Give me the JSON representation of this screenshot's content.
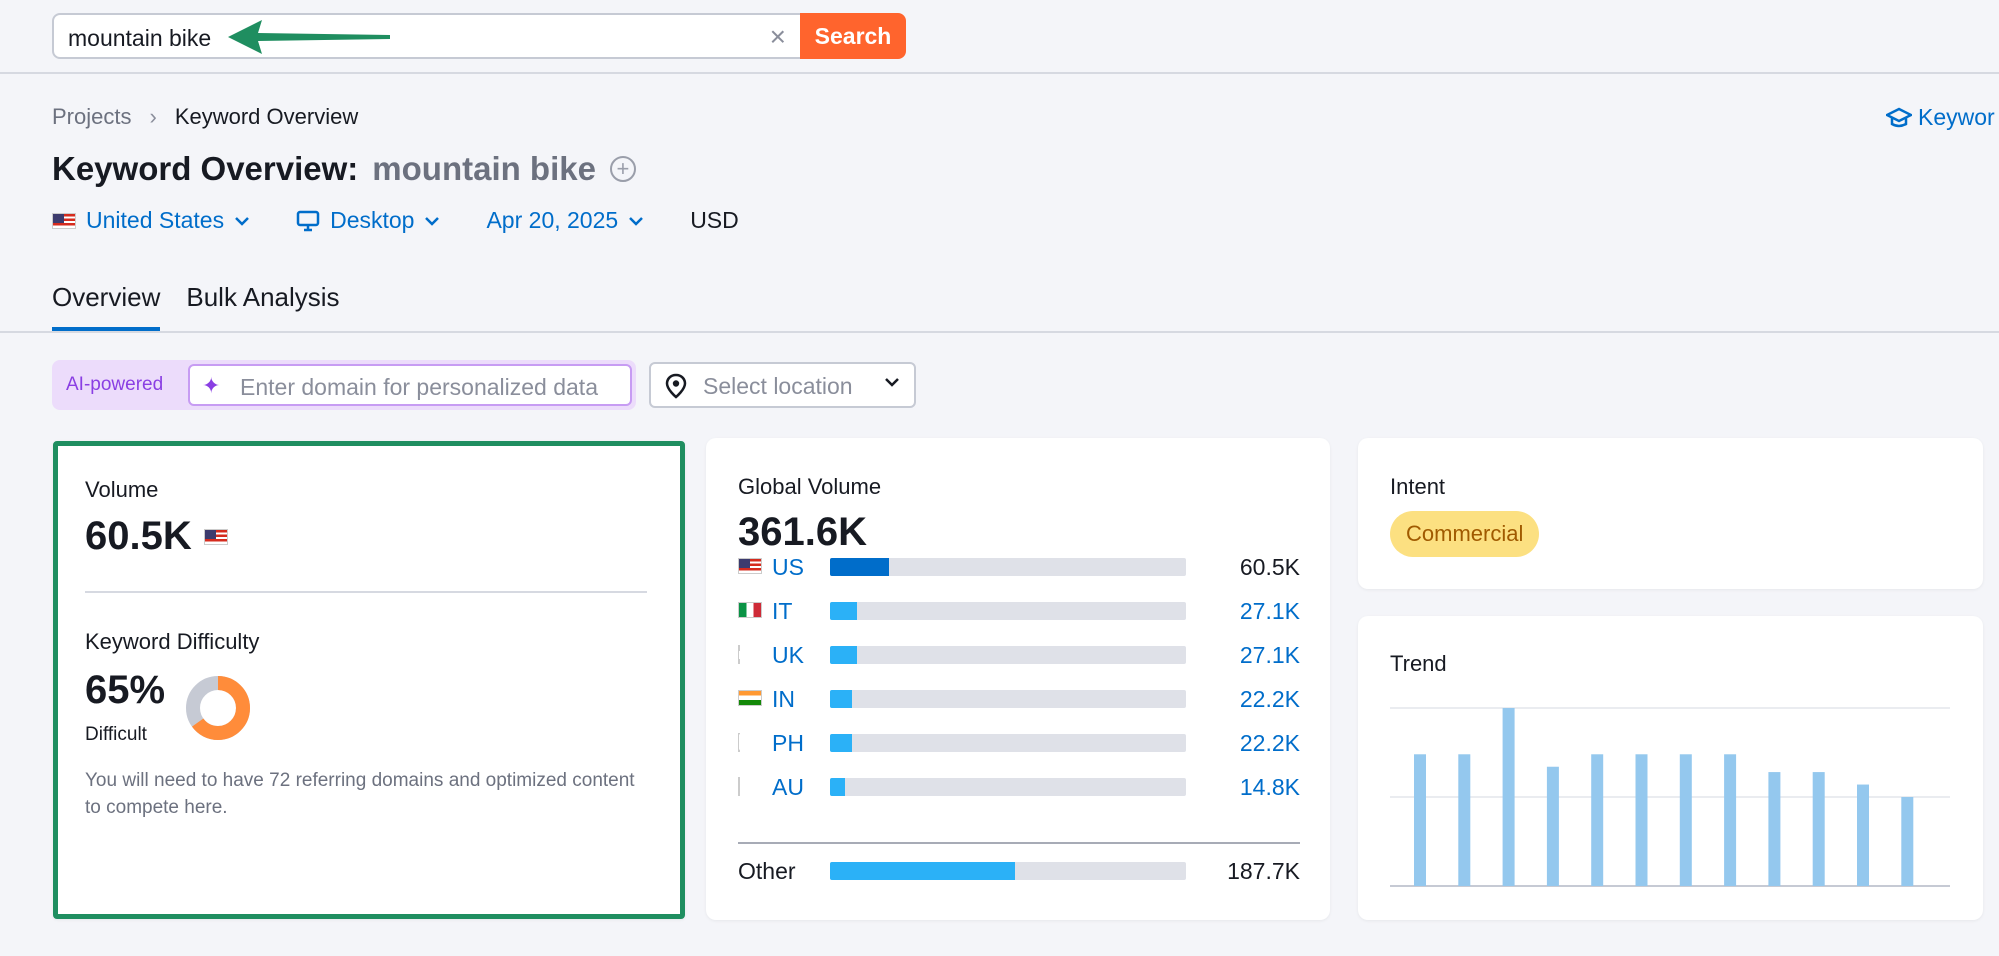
{
  "search": {
    "query": "mountain bike",
    "button_label": "Search"
  },
  "breadcrumb": {
    "root": "Projects",
    "current": "Keyword Overview"
  },
  "header_link": "Keywor",
  "title": {
    "prefix": "Keyword Overview:",
    "keyword": "mountain bike"
  },
  "filters": {
    "country": "United States",
    "device": "Desktop",
    "date": "Apr 20, 2025",
    "currency": "USD"
  },
  "tabs": [
    {
      "label": "Overview",
      "active": true
    },
    {
      "label": "Bulk Analysis",
      "active": false
    }
  ],
  "ai": {
    "badge": "AI-powered",
    "placeholder": "Enter domain for personalized data"
  },
  "location": {
    "placeholder": "Select location"
  },
  "volume": {
    "label": "Volume",
    "value": "60.5K",
    "kd_label": "Keyword Difficulty",
    "kd_value": "65%",
    "kd_percent": 65,
    "kd_level": "Difficult",
    "kd_description": "You will need to have 72 referring domains and optimized content to compete here.",
    "colors": {
      "border": "#1f8e60",
      "donut_fill": "#ff8c3a",
      "donut_track": "#c6cad4"
    }
  },
  "global_volume": {
    "label": "Global Volume",
    "value": "361.6K",
    "rows": [
      {
        "code": "US",
        "value": "60.5K",
        "share": 0.167,
        "flag": "flag-us"
      },
      {
        "code": "IT",
        "value": "27.1K",
        "share": 0.075,
        "flag": "flag-it"
      },
      {
        "code": "UK",
        "value": "27.1K",
        "share": 0.075,
        "flag": "flag-uk"
      },
      {
        "code": "IN",
        "value": "22.2K",
        "share": 0.061,
        "flag": "flag-in"
      },
      {
        "code": "PH",
        "value": "22.2K",
        "share": 0.061,
        "flag": "flag-ph"
      },
      {
        "code": "AU",
        "value": "14.8K",
        "share": 0.041,
        "flag": "flag-au"
      }
    ],
    "other": {
      "label": "Other",
      "value": "187.7K",
      "share": 0.519
    }
  },
  "intent": {
    "label": "Intent",
    "value": "Commercial"
  },
  "trend": {
    "label": "Trend",
    "chart_data": {
      "type": "bar",
      "categories": [
        "1",
        "2",
        "3",
        "4",
        "5",
        "6",
        "7",
        "8",
        "9",
        "10",
        "11",
        "12"
      ],
      "values": [
        0.74,
        0.74,
        1.0,
        0.67,
        0.74,
        0.74,
        0.74,
        0.74,
        0.64,
        0.64,
        0.57,
        0.5
      ],
      "ylim": [
        0,
        1
      ],
      "grid": true,
      "bar_color": "#94c8ee"
    }
  }
}
